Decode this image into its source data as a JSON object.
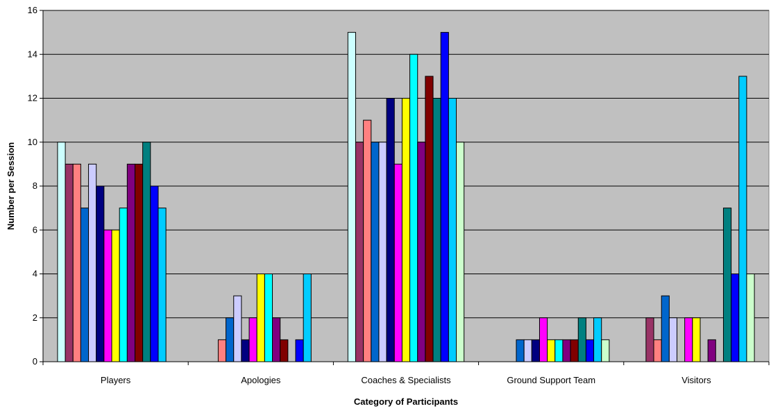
{
  "chart_data": {
    "type": "bar",
    "title": "",
    "xlabel": "Category of Participants",
    "ylabel": "Number per Session",
    "ylim": [
      0,
      16
    ],
    "yticks": [
      0,
      2,
      4,
      6,
      8,
      10,
      12,
      14,
      16
    ],
    "grid": true,
    "legend": "none",
    "plot_background": "#c0c0c0",
    "categories": [
      "Players",
      "Apologies",
      "Coaches & Specialists",
      "Ground Support Team",
      "Visitors"
    ],
    "series_colors": [
      "#ccffff",
      "#993366",
      "#ff8080",
      "#0066cc",
      "#ccccff",
      "#000080",
      "#ff00ff",
      "#ffff00",
      "#00ffff",
      "#800080",
      "#800000",
      "#008080",
      "#0000ff",
      "#00ccff",
      "#ccffcc"
    ],
    "series": [
      {
        "values": [
          10,
          0,
          15,
          0,
          0
        ]
      },
      {
        "values": [
          9,
          0,
          10,
          0,
          2
        ]
      },
      {
        "values": [
          9,
          1,
          11,
          0,
          1
        ]
      },
      {
        "values": [
          7,
          2,
          10,
          1,
          3
        ]
      },
      {
        "values": [
          9,
          3,
          10,
          1,
          2
        ]
      },
      {
        "values": [
          8,
          1,
          12,
          1,
          0
        ]
      },
      {
        "values": [
          6,
          2,
          9,
          2,
          2
        ]
      },
      {
        "values": [
          6,
          4,
          12,
          1,
          2
        ]
      },
      {
        "values": [
          7,
          4,
          14,
          1,
          0
        ]
      },
      {
        "values": [
          9,
          2,
          10,
          1,
          1
        ]
      },
      {
        "values": [
          9,
          1,
          13,
          1,
          0
        ]
      },
      {
        "values": [
          10,
          0,
          12,
          2,
          7
        ]
      },
      {
        "values": [
          8,
          1,
          15,
          1,
          4
        ]
      },
      {
        "values": [
          7,
          4,
          12,
          2,
          13
        ]
      },
      {
        "values": [
          0,
          0,
          10,
          1,
          4
        ]
      }
    ]
  }
}
